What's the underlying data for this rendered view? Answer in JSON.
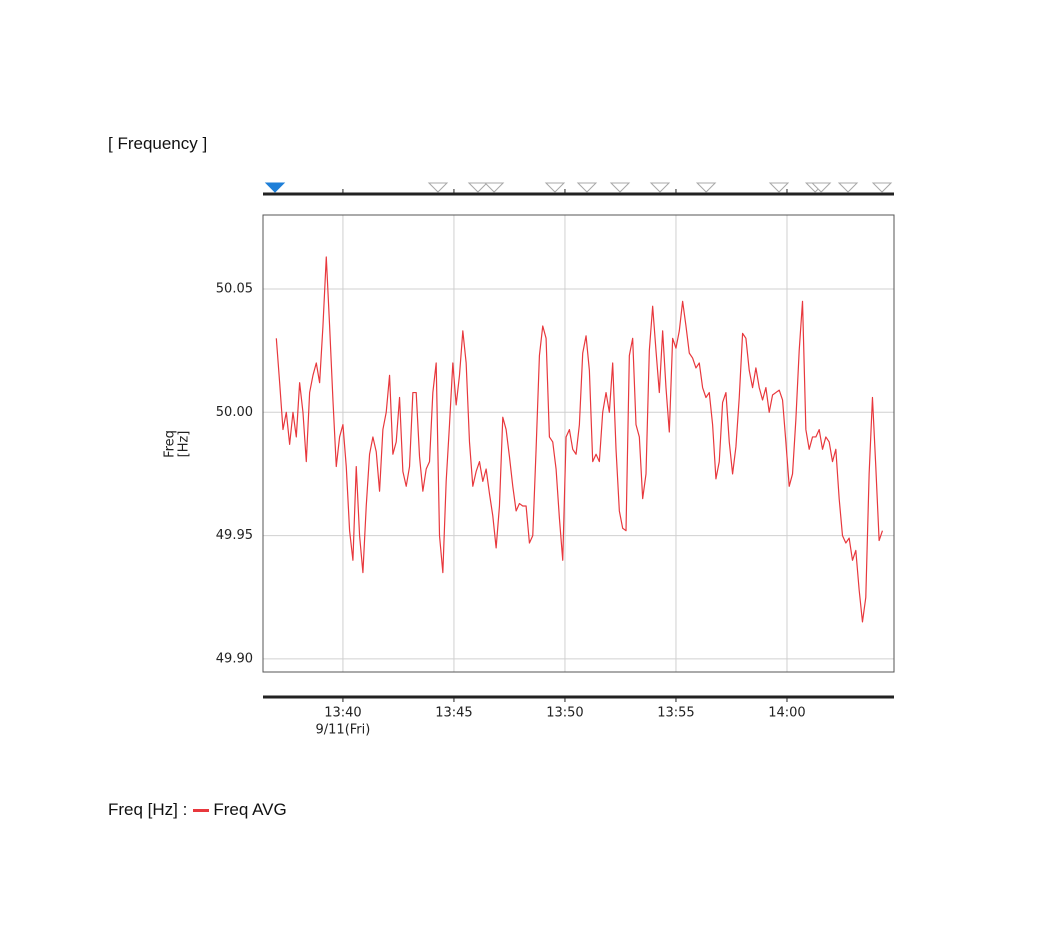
{
  "chart_data": {
    "type": "line",
    "title": "[ Frequency ]",
    "ylabel": [
      "Freq",
      "[Hz]"
    ],
    "legend_label": "Freq [Hz] :",
    "date_label": "9/11(Fri)",
    "xlim": [
      816.4,
      844.82
    ],
    "ylim": [
      49.8947,
      50.08
    ],
    "xticks": [
      {
        "value": 820,
        "label": "13:40"
      },
      {
        "value": 825,
        "label": "13:45"
      },
      {
        "value": 830,
        "label": "13:50"
      },
      {
        "value": 835,
        "label": "13:55"
      },
      {
        "value": 840,
        "label": "14:00"
      }
    ],
    "yticks": [
      {
        "value": 49.9,
        "label": "49.90"
      },
      49.95,
      {
        "value": 50,
        "label": "50.00"
      },
      50.05
    ],
    "grid": true,
    "events": [
      {
        "x": 816.94,
        "filled": true,
        "color": "#1e7fd8"
      },
      {
        "x": 824.28,
        "filled": false,
        "color": "#a8a8a8"
      },
      {
        "x": 826.08,
        "filled": false,
        "color": "#a8a8a8"
      },
      {
        "x": 826.81,
        "filled": false,
        "color": "#a8a8a8"
      },
      {
        "x": 829.55,
        "filled": false,
        "color": "#a8a8a8"
      },
      {
        "x": 830.99,
        "filled": false,
        "color": "#a8a8a8"
      },
      {
        "x": 832.48,
        "filled": false,
        "color": "#a8a8a8"
      },
      {
        "x": 834.28,
        "filled": false,
        "color": "#a8a8a8"
      },
      {
        "x": 836.36,
        "filled": false,
        "color": "#a8a8a8"
      },
      {
        "x": 839.64,
        "filled": false,
        "color": "#a8a8a8"
      },
      {
        "x": 841.27,
        "filled": false,
        "color": "#a8a8a8"
      },
      {
        "x": 841.54,
        "filled": false,
        "color": "#a8a8a8"
      },
      {
        "x": 842.75,
        "filled": false,
        "color": "#a8a8a8"
      },
      {
        "x": 844.28,
        "filled": false,
        "color": "#a8a8a8"
      }
    ],
    "x": [
      817,
      817.15,
      817.3,
      817.45,
      817.6,
      817.75,
      817.9,
      818.05,
      818.2,
      818.35,
      818.5,
      818.65,
      818.8,
      818.95,
      819.1,
      819.25,
      819.4,
      819.55,
      819.7,
      819.85,
      820,
      820.15,
      820.3,
      820.45,
      820.6,
      820.75,
      820.9,
      821.05,
      821.2,
      821.35,
      821.5,
      821.65,
      821.8,
      821.95,
      822.1,
      822.25,
      822.4,
      822.55,
      822.7,
      822.85,
      823,
      823.15,
      823.3,
      823.45,
      823.6,
      823.75,
      823.9,
      824.05,
      824.2,
      824.35,
      824.5,
      824.65,
      824.8,
      824.95,
      825.1,
      825.25,
      825.4,
      825.55,
      825.7,
      825.85,
      826,
      826.15,
      826.3,
      826.45,
      826.6,
      826.75,
      826.9,
      827.05,
      827.2,
      827.35,
      827.5,
      827.65,
      827.8,
      827.95,
      828.1,
      828.25,
      828.4,
      828.55,
      828.7,
      828.85,
      829,
      829.15,
      829.3,
      829.45,
      829.6,
      829.75,
      829.9,
      830.05,
      830.2,
      830.35,
      830.5,
      830.65,
      830.8,
      830.95,
      831.1,
      831.25,
      831.4,
      831.55,
      831.7,
      831.85,
      832,
      832.15,
      832.3,
      832.45,
      832.6,
      832.75,
      832.9,
      833.05,
      833.2,
      833.35,
      833.5,
      833.65,
      833.8,
      833.95,
      834.1,
      834.25,
      834.4,
      834.55,
      834.7,
      834.85,
      835,
      835.15,
      835.3,
      835.45,
      835.6,
      835.75,
      835.9,
      836.05,
      836.2,
      836.35,
      836.5,
      836.65,
      836.8,
      836.95,
      837.1,
      837.25,
      837.4,
      837.55,
      837.7,
      837.85,
      838,
      838.15,
      838.3,
      838.45,
      838.6,
      838.75,
      838.9,
      839.05,
      839.2,
      839.35,
      839.5,
      839.65,
      839.8,
      839.95,
      840.1,
      840.25,
      840.4,
      840.55,
      840.7,
      840.85,
      841,
      841.15,
      841.3,
      841.45,
      841.6,
      841.75,
      841.9,
      842.05,
      842.2,
      842.35,
      842.5,
      842.65,
      842.8,
      842.95,
      843.1,
      843.25,
      843.4,
      843.55,
      843.7,
      843.85,
      844,
      844.15,
      844.3
    ],
    "series": [
      {
        "name": "Freq AVG",
        "color": "#e8383d",
        "values": [
          50.03,
          50.012,
          49.993,
          50.0,
          49.987,
          50.0,
          49.99,
          50.012,
          50.0,
          49.98,
          50.008,
          50.015,
          50.02,
          50.012,
          50.035,
          50.063,
          50.035,
          50.005,
          49.978,
          49.99,
          49.995,
          49.978,
          49.952,
          49.94,
          49.978,
          49.95,
          49.935,
          49.962,
          49.983,
          49.99,
          49.984,
          49.968,
          49.993,
          50.0,
          50.015,
          49.983,
          49.988,
          50.006,
          49.976,
          49.97,
          49.978,
          50.008,
          50.008,
          49.982,
          49.968,
          49.977,
          49.98,
          50.008,
          50.02,
          49.95,
          49.935,
          49.972,
          49.995,
          50.02,
          50.003,
          50.015,
          50.033,
          50.02,
          49.988,
          49.97,
          49.976,
          49.98,
          49.972,
          49.977,
          49.967,
          49.958,
          49.945,
          49.962,
          49.998,
          49.993,
          49.982,
          49.97,
          49.96,
          49.963,
          49.962,
          49.962,
          49.947,
          49.95,
          49.985,
          50.023,
          50.035,
          50.03,
          49.99,
          49.988,
          49.977,
          49.957,
          49.94,
          49.99,
          49.993,
          49.985,
          49.983,
          49.995,
          50.024,
          50.031,
          50.017,
          49.98,
          49.983,
          49.98,
          50.0,
          50.008,
          50.0,
          50.02,
          49.985,
          49.96,
          49.953,
          49.952,
          50.023,
          50.03,
          49.995,
          49.99,
          49.965,
          49.975,
          50.025,
          50.043,
          50.025,
          50.008,
          50.033,
          50.01,
          49.992,
          50.03,
          50.026,
          50.033,
          50.045,
          50.035,
          50.024,
          50.022,
          50.018,
          50.02,
          50.01,
          50.006,
          50.008,
          49.995,
          49.973,
          49.98,
          50.004,
          50.008,
          49.988,
          49.975,
          49.986,
          50.006,
          50.032,
          50.03,
          50.017,
          50.01,
          50.018,
          50.01,
          50.005,
          50.01,
          50.0,
          50.007,
          50.008,
          50.009,
          50.005,
          49.988,
          49.97,
          49.975,
          49.997,
          50.025,
          50.045,
          49.993,
          49.985,
          49.99,
          49.99,
          49.993,
          49.985,
          49.99,
          49.988,
          49.98,
          49.985,
          49.965,
          49.95,
          49.947,
          49.949,
          49.94,
          49.944,
          49.928,
          49.915,
          49.925,
          49.975,
          50.006,
          49.978,
          49.948,
          49.952
        ]
      }
    ]
  }
}
